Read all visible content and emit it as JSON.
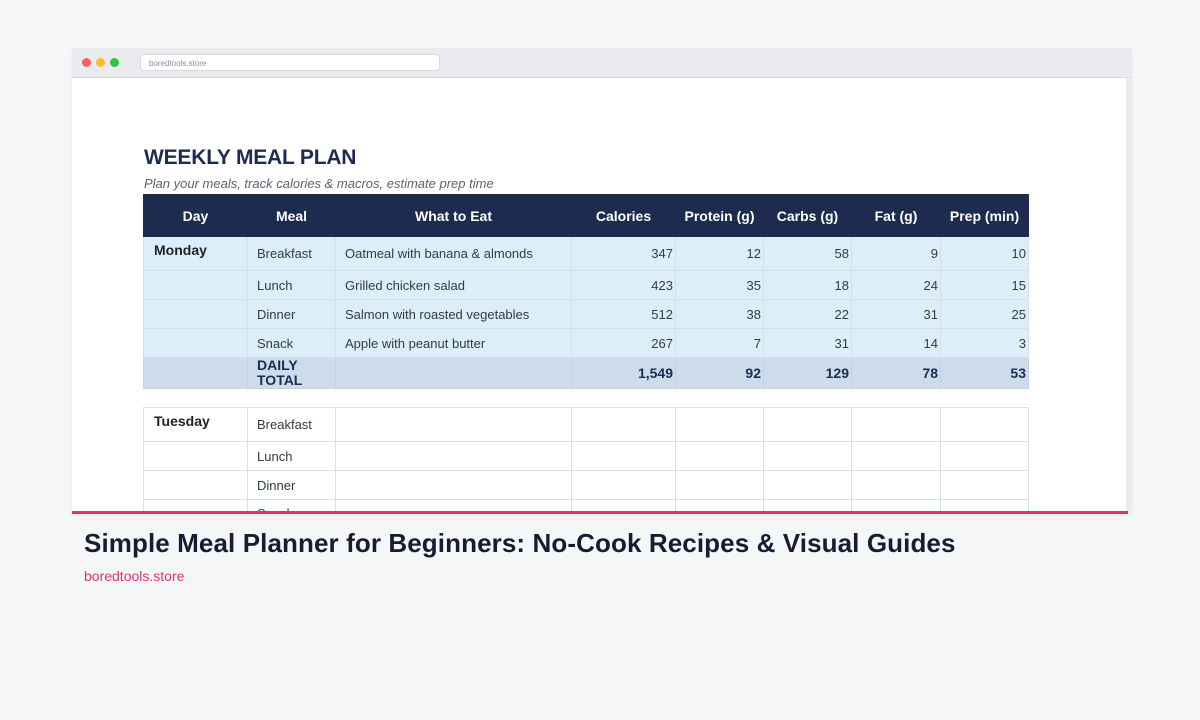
{
  "browser": {
    "url": "boredtools.store"
  },
  "sheet": {
    "title": "WEEKLY MEAL PLAN",
    "subtitle": "Plan your meals, track calories & macros, estimate prep time",
    "columns": [
      "Day",
      "Meal",
      "What to Eat",
      "Calories",
      "Protein (g)",
      "Carbs (g)",
      "Fat (g)",
      "Prep (min)"
    ],
    "monday": {
      "day": "Monday",
      "rows": [
        {
          "meal": "Breakfast",
          "food": "Oatmeal with banana & almonds",
          "calories": "347",
          "protein": "12",
          "carbs": "58",
          "fat": "9",
          "prep": "10"
        },
        {
          "meal": "Lunch",
          "food": "Grilled chicken salad",
          "calories": "423",
          "protein": "35",
          "carbs": "18",
          "fat": "24",
          "prep": "15"
        },
        {
          "meal": "Dinner",
          "food": "Salmon with roasted vegetables",
          "calories": "512",
          "protein": "38",
          "carbs": "22",
          "fat": "31",
          "prep": "25"
        },
        {
          "meal": "Snack",
          "food": "Apple with peanut butter",
          "calories": "267",
          "protein": "7",
          "carbs": "31",
          "fat": "14",
          "prep": "3"
        }
      ],
      "total": {
        "label_line1": "DAILY",
        "label_line2": "TOTAL",
        "calories": "1,549",
        "protein": "92",
        "carbs": "129",
        "fat": "78",
        "prep": "53"
      }
    },
    "tuesday": {
      "day": "Tuesday",
      "meals": [
        "Breakfast",
        "Lunch",
        "Dinner",
        "Snack"
      ]
    }
  },
  "caption": {
    "title": "Simple Meal Planner for Beginners: No-Cook Recipes & Visual Guides",
    "link": "boredtools.store"
  },
  "colors": {
    "header_navy": "#1d2b4f",
    "row_light_blue": "#ddeefb",
    "total_row": "#ccdcea",
    "accent_pink": "#e0336b"
  }
}
